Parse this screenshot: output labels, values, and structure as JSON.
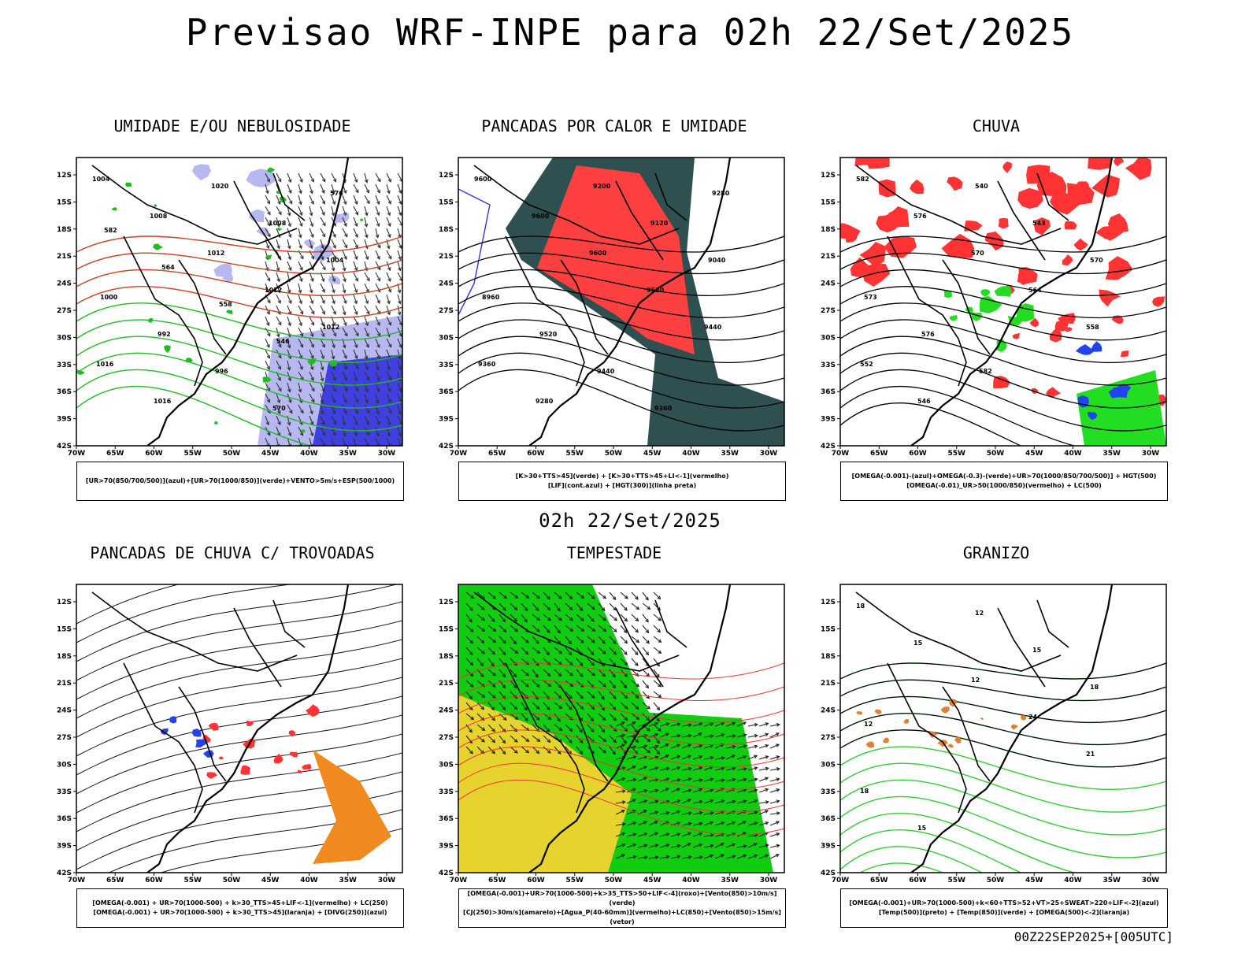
{
  "title": "Previsao WRF-INPE  para 02h 22/Set/2025",
  "mid_time": "02h 22/Set/2025",
  "footer": "00Z22SEP2025+[005UTC]",
  "axis": {
    "lat_labels": [
      "12S",
      "15S",
      "18S",
      "21S",
      "24S",
      "27S",
      "30S",
      "33S",
      "36S",
      "39S",
      "42S"
    ],
    "lon_labels": [
      "70W",
      "65W",
      "60W",
      "55W",
      "50W",
      "45W",
      "40W",
      "35W",
      "30W"
    ]
  },
  "panels": [
    {
      "id": "umidade",
      "title": "UMIDADE E/OU NEBULOSIDADE",
      "legend": [
        "[UR>70(850/700/500)](azul)+[UR>70(1000/850)](verde)+VENTO>5m/s+ESP(500/1000)"
      ],
      "contour_labels": [
        "1004",
        "1008",
        "1012",
        "1012",
        "1012",
        "1016",
        "1016",
        "1020",
        "1008",
        "1004",
        "1000",
        "992",
        "996",
        "570",
        "576",
        "582",
        "564",
        "558",
        "546"
      ],
      "colors": {
        "fill1": "#b8b8f0",
        "fill2": "#4040e0",
        "line1": "#22bb22",
        "line2": "#ee3333"
      }
    },
    {
      "id": "pancadas-calor",
      "title": "PANCADAS POR CALOR E UMIDADE",
      "legend": [
        "[K>30+TTS>45](verde) + [K>30+TTS>45+LI<-1](vermelho)",
        "[LIF](cont.azul) + [HGT(300)](linha preta)"
      ],
      "contour_labels": [
        "9600",
        "9600",
        "9600",
        "9520",
        "9440",
        "9360",
        "9280",
        "9200",
        "9120",
        "9040",
        "8960",
        "9520",
        "9440",
        "9360",
        "9280"
      ],
      "colors": {
        "fill1": "#2f5050",
        "fill2": "#ff4040",
        "line1": "#3333ee"
      }
    },
    {
      "id": "chuva",
      "title": "CHUVA",
      "legend": [
        "[OMEGA(-0.001)-(azul)+OMEGA(-0.3)-(verde)+UR>70(1000/850/700/500)] + HGT(500)",
        "[OMEGA(-0.01)_UR>50(1000/850)(vermelho) + LC(500)"
      ],
      "contour_labels": [
        "582",
        "576",
        "570",
        "564",
        "558",
        "552",
        "546",
        "540",
        "543",
        "570",
        "573",
        "576",
        "582"
      ],
      "colors": {
        "fill1": "#ff3333",
        "fill2": "#22dd22",
        "fill3": "#2244ee"
      }
    },
    {
      "id": "trovoadas",
      "title": "PANCADAS DE CHUVA C/ TROVOADAS",
      "legend": [
        "[OMEGA(-0.001) + UR>70(1000-500) + k>30_TTS>45+LIF<-1](vermelho) + LC(250)",
        "[OMEGA(-0.001) + UR>70(1000-500) + k>30_TTS>45](laranja) + [DIVG(250)](azul)"
      ],
      "contour_labels": [],
      "colors": {
        "fill1": "#ff3333",
        "fill2": "#f08a20",
        "fill3": "#2244ee"
      }
    },
    {
      "id": "tempestade",
      "title": "TEMPESTADE",
      "legend": [
        "[OMEGA(-0.001)+UR>70(1000-500)+k>35_TTS>50+LIF<-4](roxo)+[Vento(850)>10m/s](verde)",
        "[CJ(250)>30m/s](amarelo)+[Agua_P(40-60mm)](vermelho)+LC(850)+[Vento(850)>15m/s](vetor)"
      ],
      "contour_labels": [],
      "colors": {
        "fill1": "#11cc11",
        "fill2": "#e6d32e",
        "line1": "#ee3333"
      }
    },
    {
      "id": "granizo",
      "title": "GRANIZO",
      "legend": [
        "[OMEGA(-0.001)+UR>70(1000-500)+k<60+TTS>52+VT>25+SWEAT>220+LIF<-2](azul)",
        "[Temp(500)](preto) + [Temp(850)](verde) + [OMEGA(500)<-2](laranja)"
      ],
      "contour_labels": [
        "18",
        "15",
        "12",
        "24",
        "21",
        "18",
        "15",
        "12",
        "15",
        "18",
        "12"
      ],
      "colors": {
        "line1": "#33cc33",
        "line2": "#e08030",
        "line3": "#000000"
      }
    }
  ]
}
